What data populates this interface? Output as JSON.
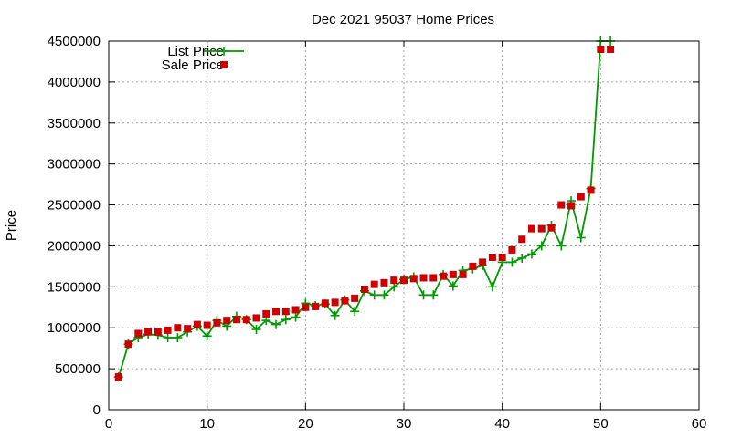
{
  "chart_data": {
    "type": "scatter",
    "title": "Dec 2021 95037 Home Prices",
    "xlabel": "",
    "ylabel": "Price",
    "xlim": [
      0,
      60
    ],
    "ylim": [
      0,
      4500000
    ],
    "xticks": [
      0,
      10,
      20,
      30,
      40,
      50,
      60
    ],
    "yticks": [
      0,
      500000,
      1000000,
      1500000,
      2000000,
      2500000,
      3000000,
      3500000,
      4000000,
      4500000
    ],
    "grid": true,
    "legend_position": "top-left",
    "series": [
      {
        "name": "List Price",
        "style": "linespoints",
        "marker": "plus",
        "color": "#009900",
        "x": [
          1,
          2,
          3,
          4,
          5,
          6,
          7,
          8,
          9,
          10,
          11,
          12,
          13,
          14,
          15,
          16,
          17,
          18,
          19,
          20,
          21,
          22,
          23,
          24,
          25,
          26,
          27,
          28,
          29,
          30,
          31,
          32,
          33,
          34,
          35,
          36,
          37,
          38,
          39,
          40,
          41,
          42,
          43,
          44,
          45,
          46,
          47,
          48,
          49,
          50,
          51
        ],
        "values": [
          400000,
          800000,
          880000,
          920000,
          910000,
          880000,
          880000,
          950000,
          1020000,
          900000,
          1090000,
          1020000,
          1140000,
          1100000,
          980000,
          1090000,
          1040000,
          1100000,
          1130000,
          1300000,
          1270000,
          1290000,
          1150000,
          1340000,
          1200000,
          1450000,
          1400000,
          1400000,
          1500000,
          1590000,
          1620000,
          1400000,
          1400000,
          1650000,
          1510000,
          1700000,
          1720000,
          1760000,
          1500000,
          1800000,
          1800000,
          1850000,
          1900000,
          2000000,
          2250000,
          2000000,
          2550000,
          2100000,
          2700000,
          4500000,
          4500000
        ]
      },
      {
        "name": "Sale Price",
        "style": "points",
        "marker": "square",
        "color": "#cc0000",
        "x": [
          1,
          2,
          3,
          4,
          5,
          6,
          7,
          8,
          9,
          10,
          11,
          12,
          13,
          14,
          15,
          16,
          17,
          18,
          19,
          20,
          21,
          22,
          23,
          24,
          25,
          26,
          27,
          28,
          29,
          30,
          31,
          32,
          33,
          34,
          35,
          36,
          37,
          38,
          39,
          40,
          41,
          42,
          43,
          44,
          45,
          46,
          47,
          48,
          49,
          50,
          51
        ],
        "values": [
          400000,
          800000,
          930000,
          950000,
          950000,
          970000,
          1000000,
          990000,
          1040000,
          1030000,
          1060000,
          1090000,
          1100000,
          1100000,
          1120000,
          1170000,
          1200000,
          1200000,
          1220000,
          1250000,
          1260000,
          1300000,
          1310000,
          1330000,
          1360000,
          1470000,
          1530000,
          1550000,
          1580000,
          1580000,
          1600000,
          1610000,
          1610000,
          1630000,
          1650000,
          1650000,
          1750000,
          1800000,
          1860000,
          1860000,
          1950000,
          2080000,
          2210000,
          2210000,
          2220000,
          2500000,
          2490000,
          2600000,
          2680000,
          4400000,
          4400000
        ]
      }
    ]
  }
}
